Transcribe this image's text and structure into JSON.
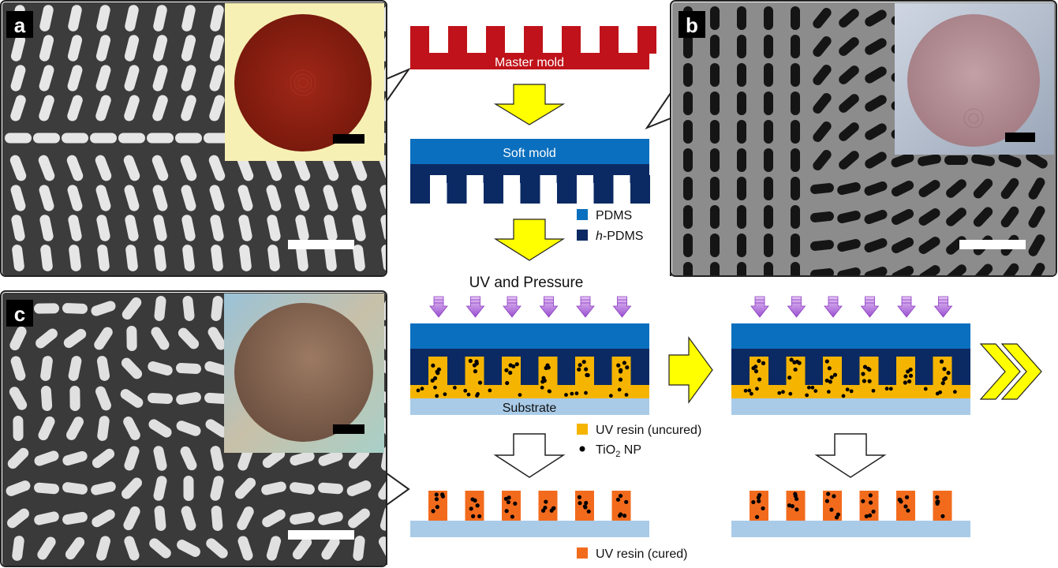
{
  "panels": {
    "a": {
      "letter": "a"
    },
    "b": {
      "letter": "b"
    },
    "c": {
      "letter": "c"
    }
  },
  "process": {
    "master_mold": "Master mold",
    "soft_mold": "Soft mold",
    "uv_pressure": "UV and Pressure",
    "substrate": "Substrate"
  },
  "legend": {
    "pdms": "PDMS",
    "hpdms_prefix": "h",
    "hpdms_suffix": "-PDMS",
    "uv_uncured": "UV resin (uncured)",
    "tio2_prefix": "TiO",
    "tio2_sub": "2",
    "tio2_suffix": " NP",
    "uv_cured": "UV resin (cured)"
  },
  "colors": {
    "master_mold": "#c0121a",
    "pdms": "#0a6fbe",
    "hpdms": "#0b2a63",
    "uv_resin_uncured": "#f5b400",
    "uv_resin_cured": "#f26b1d",
    "substrate": "#a9cbe8",
    "arrow_yellow": "#ffff00",
    "uv_arrow": "#b07ad9",
    "sem_background": "#3a3a3a",
    "inset_a_wafer": "#8c1e12",
    "inset_b_wafer": "#b08a90",
    "inset_c_wafer": "#8a6a55"
  }
}
